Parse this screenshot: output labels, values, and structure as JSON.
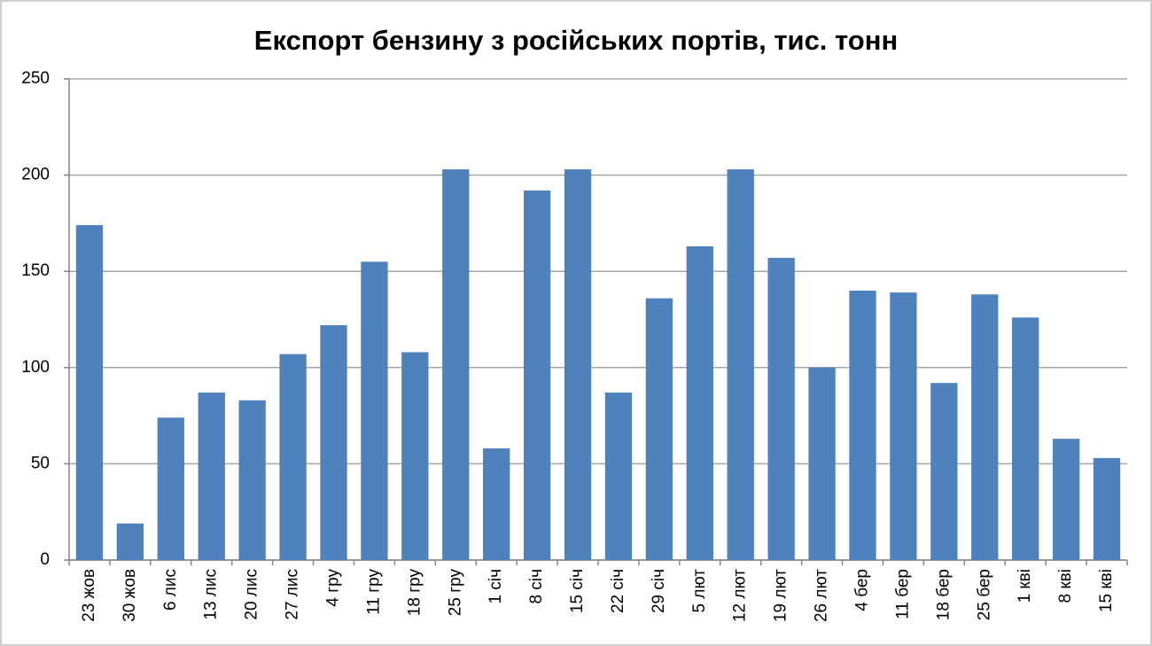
{
  "chart_data": {
    "type": "bar",
    "title": "Експорт бензину з російських портів, тис. тонн",
    "categories": [
      "23 жов",
      "30 жов",
      "6 лис",
      "13 лис",
      "20 лис",
      "27 лис",
      "4 гру",
      "11 гру",
      "18 гру",
      "25 гру",
      "1 січ",
      "8 січ",
      "15 січ",
      "22 січ",
      "29 січ",
      "5 лют",
      "12 лют",
      "19 лют",
      "26 лют",
      "4 бер",
      "11 бер",
      "18 бер",
      "25 бер",
      "1 кві",
      "8 кві",
      "15 кві"
    ],
    "values": [
      174,
      19,
      74,
      87,
      83,
      107,
      122,
      155,
      108,
      203,
      58,
      192,
      203,
      87,
      136,
      163,
      203,
      157,
      100,
      140,
      139,
      92,
      138,
      126,
      63,
      53
    ],
    "color": "#4f81bd",
    "ylim": [
      0,
      250
    ],
    "yticks": [
      0,
      50,
      100,
      150,
      200,
      250
    ],
    "grid": true
  }
}
